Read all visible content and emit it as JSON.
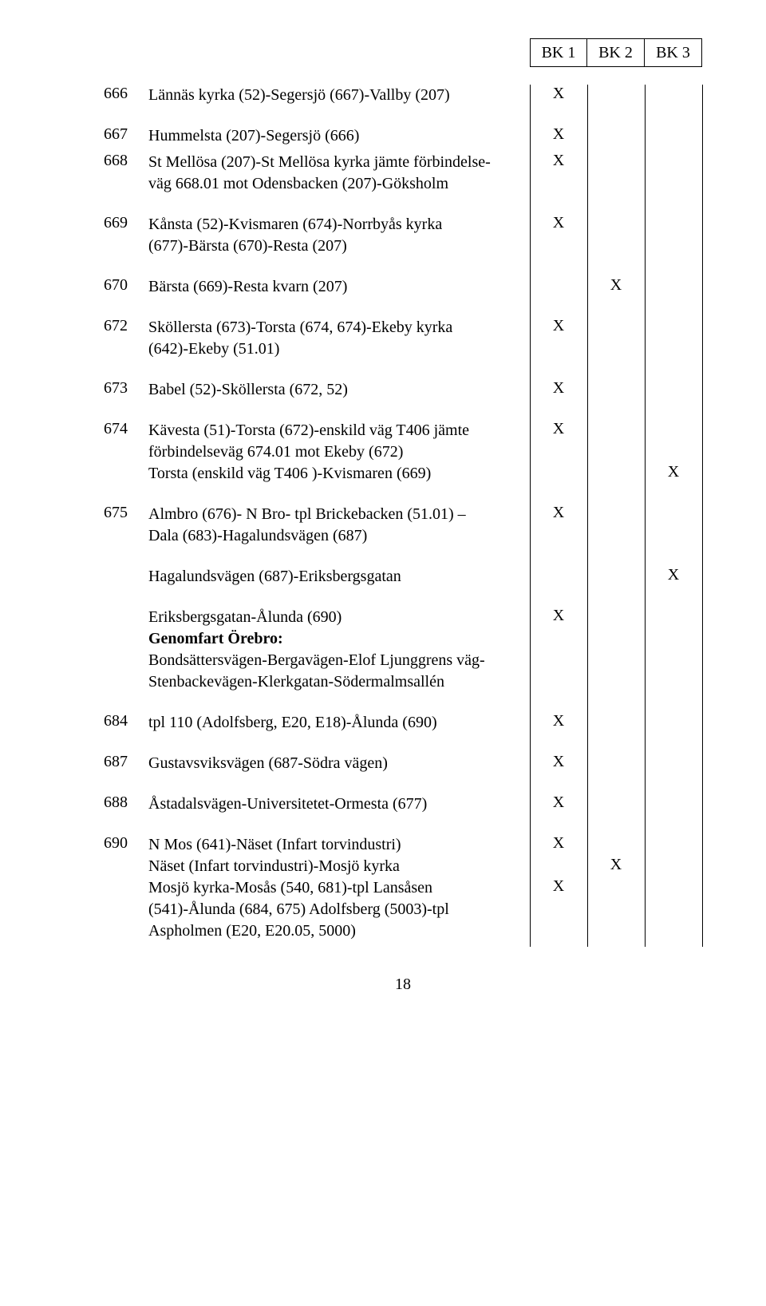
{
  "header": {
    "cells": [
      "BK 1",
      "BK 2",
      "BK 3"
    ]
  },
  "layout": {
    "id_col_width": 56,
    "desc_col_width": 478,
    "mark_col_width": 72,
    "line_top": 0,
    "line_height": 1440
  },
  "rows": [
    {
      "id": "666",
      "lines": [
        {
          "text": "Lännäs kyrka (52)-Segersjö (667)-Vallby (207)",
          "marks": [
            "X",
            "",
            ""
          ]
        }
      ],
      "spacer_after": true
    },
    {
      "id": "667",
      "lines": [
        {
          "text": "Hummelsta (207)-Segersjö (666)",
          "marks": [
            "X",
            "",
            ""
          ]
        }
      ]
    },
    {
      "id": "668",
      "lines": [
        {
          "text": "St Mellösa (207)-St Mellösa kyrka jämte förbindelse-",
          "marks": [
            "X",
            "",
            ""
          ]
        },
        {
          "text": "väg 668.01 mot Odensbacken (207)-Göksholm",
          "marks": [
            "",
            "",
            ""
          ]
        }
      ],
      "spacer_after": true
    },
    {
      "id": "669",
      "lines": [
        {
          "text": "Kånsta (52)-Kvismaren (674)-Norrbyås kyrka",
          "marks": [
            "X",
            "",
            ""
          ]
        },
        {
          "text": "(677)-Bärsta (670)-Resta (207)",
          "marks": [
            "",
            "",
            ""
          ]
        }
      ],
      "spacer_after": true
    },
    {
      "id": "670",
      "lines": [
        {
          "text": "Bärsta (669)-Resta kvarn (207)",
          "marks": [
            "",
            "X",
            ""
          ]
        }
      ],
      "spacer_after": true
    },
    {
      "id": "672",
      "lines": [
        {
          "text": "Sköllersta (673)-Torsta (674, 674)-Ekeby kyrka",
          "marks": [
            "X",
            "",
            ""
          ]
        },
        {
          "text": "(642)-Ekeby (51.01)",
          "marks": [
            "",
            "",
            ""
          ]
        }
      ],
      "spacer_after": true
    },
    {
      "id": "673",
      "lines": [
        {
          "text": "Babel (52)-Sköllersta (672, 52)",
          "marks": [
            "X",
            "",
            ""
          ]
        }
      ],
      "spacer_after": true
    },
    {
      "id": "674",
      "lines": [
        {
          "text": "Kävesta (51)-Torsta (672)-enskild väg T406 jämte",
          "marks": [
            "X",
            "",
            ""
          ]
        },
        {
          "text": "förbindelseväg 674.01 mot Ekeby (672)",
          "marks": [
            "",
            "",
            ""
          ]
        },
        {
          "text": "Torsta (enskild väg T406 )-Kvismaren (669)",
          "marks": [
            "",
            "",
            "X"
          ]
        }
      ],
      "spacer_after": true
    },
    {
      "id": "675",
      "lines": [
        {
          "text": "Almbro (676)- N Bro- tpl Brickebacken (51.01) –",
          "marks": [
            "X",
            "",
            ""
          ]
        },
        {
          "text": "Dala (683)-Hagalundsvägen (687)",
          "marks": [
            "",
            "",
            ""
          ]
        }
      ],
      "spacer_after": true
    },
    {
      "id": "",
      "lines": [
        {
          "text": "Hagalundsvägen (687)-Eriksbergsgatan",
          "marks": [
            "",
            "",
            "X"
          ]
        }
      ],
      "spacer_after": true
    },
    {
      "id": "",
      "lines": [
        {
          "text": "Eriksbergsgatan-Ålunda (690)",
          "marks": [
            "X",
            "",
            ""
          ]
        },
        {
          "text": "Genomfart Örebro:",
          "bold": true,
          "marks": [
            "",
            "",
            ""
          ]
        },
        {
          "text": "Bondsättersvägen-Bergavägen-Elof Ljunggrens väg-",
          "marks": [
            "",
            "",
            ""
          ]
        },
        {
          "text": "Stenbackevägen-Klerkgatan-Södermalmsallén",
          "marks": [
            "",
            "",
            ""
          ]
        }
      ],
      "spacer_after": true
    },
    {
      "id": "684",
      "lines": [
        {
          "text": "tpl 110 (Adolfsberg, E20, E18)-Ålunda (690)",
          "marks": [
            "X",
            "",
            ""
          ]
        }
      ],
      "spacer_after": true
    },
    {
      "id": "687",
      "lines": [
        {
          "text": "Gustavsviksvägen (687-Södra vägen)",
          "marks": [
            "X",
            "",
            ""
          ]
        }
      ],
      "spacer_after": true
    },
    {
      "id": "688",
      "lines": [
        {
          "text": "Åstadalsvägen-Universitetet-Ormesta (677)",
          "marks": [
            "X",
            "",
            ""
          ]
        }
      ],
      "spacer_after": true
    },
    {
      "id": "690",
      "lines": [
        {
          "text": "N Mos (641)-Näset (Infart torvindustri)",
          "marks": [
            "X",
            "",
            ""
          ]
        },
        {
          "text": "Näset (Infart torvindustri)-Mosjö kyrka",
          "marks": [
            "",
            "X",
            ""
          ]
        },
        {
          "text": "Mosjö kyrka-Mosås (540, 681)-tpl Lansåsen",
          "marks": [
            "X",
            "",
            ""
          ]
        },
        {
          "text": "(541)-Ålunda (684, 675) Adolfsberg (5003)-tpl",
          "marks": [
            "",
            "",
            ""
          ]
        },
        {
          "text": "Aspholmen (E20, E20.05, 5000)",
          "marks": [
            "",
            "",
            ""
          ]
        }
      ]
    }
  ],
  "page_number": "18"
}
